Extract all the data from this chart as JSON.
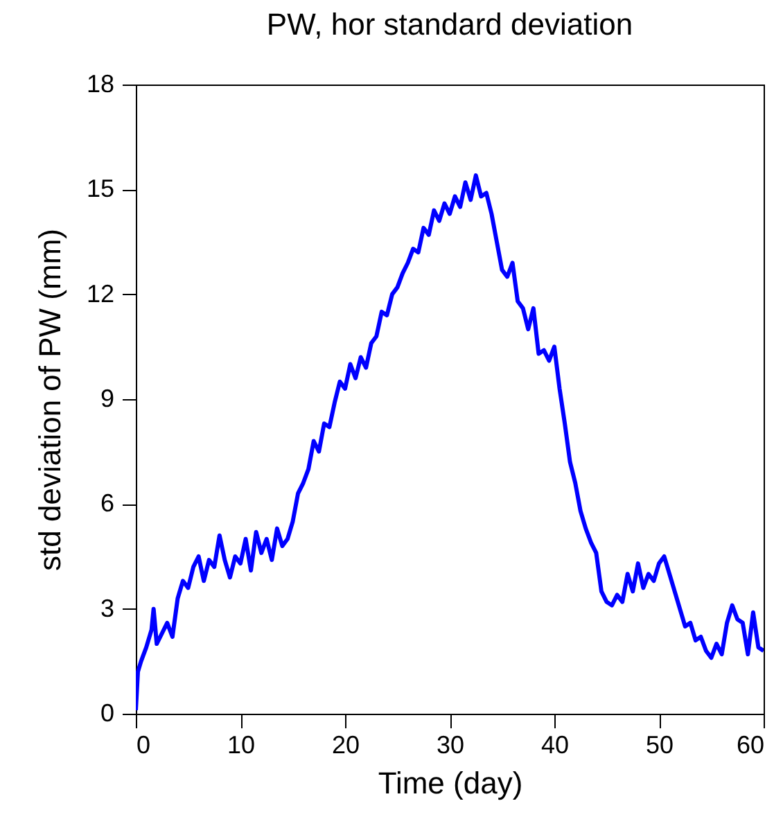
{
  "chart_data": {
    "type": "line",
    "title": "PW, hor standard deviation",
    "xlabel": "Time (day)",
    "ylabel": "std deviation of PW (mm)",
    "x": [
      0,
      0.2,
      0.5,
      1,
      1.5,
      1.7,
      2,
      2.5,
      3,
      3.5,
      4,
      4.5,
      5,
      5.5,
      6,
      6.5,
      7,
      7.5,
      8,
      8.5,
      9,
      9.5,
      10,
      10.5,
      11,
      11.5,
      12,
      12.5,
      13,
      13.5,
      14,
      14.5,
      15,
      15.5,
      16,
      16.5,
      17,
      17.5,
      18,
      18.5,
      19,
      19.5,
      20,
      20.5,
      21,
      21.5,
      22,
      22.5,
      23,
      23.5,
      24,
      24.5,
      25,
      25.5,
      26,
      26.5,
      27,
      27.5,
      28,
      28.5,
      29,
      29.5,
      30,
      30.5,
      31,
      31.5,
      32,
      32.5,
      33,
      33.5,
      34,
      34.5,
      35,
      35.5,
      36,
      36.5,
      37,
      37.5,
      38,
      38.5,
      39,
      39.5,
      40,
      40.5,
      41,
      41.5,
      42,
      42.5,
      43,
      43.5,
      44,
      44.5,
      45,
      45.5,
      46,
      46.5,
      47,
      47.5,
      48,
      48.5,
      49,
      49.5,
      50,
      50.5,
      51,
      51.5,
      52,
      52.5,
      53,
      53.5,
      54,
      54.5,
      55,
      55.5,
      56,
      56.5,
      57,
      57.5,
      58,
      58.5,
      59,
      59.5,
      60
    ],
    "series": [
      {
        "color": "#0000ff",
        "values": [
          0.1,
          1.2,
          1.5,
          1.9,
          2.4,
          3.0,
          2.0,
          2.3,
          2.6,
          2.2,
          3.3,
          3.8,
          3.6,
          4.2,
          4.5,
          3.8,
          4.4,
          4.2,
          5.1,
          4.4,
          3.9,
          4.5,
          4.3,
          5.0,
          4.1,
          5.2,
          4.6,
          5.0,
          4.4,
          5.3,
          4.8,
          5.0,
          5.5,
          6.3,
          6.6,
          7.0,
          7.8,
          7.5,
          8.3,
          8.2,
          8.9,
          9.5,
          9.3,
          10.0,
          9.6,
          10.2,
          9.9,
          10.6,
          10.8,
          11.5,
          11.4,
          12.0,
          12.2,
          12.6,
          12.9,
          13.3,
          13.2,
          13.9,
          13.7,
          14.4,
          14.1,
          14.6,
          14.3,
          14.8,
          14.5,
          15.2,
          14.7,
          15.4,
          14.8,
          14.9,
          14.3,
          13.5,
          12.7,
          12.5,
          12.9,
          11.8,
          11.6,
          11.0,
          11.6,
          10.3,
          10.4,
          10.1,
          10.5,
          9.3,
          8.3,
          7.2,
          6.6,
          5.8,
          5.3,
          4.9,
          4.6,
          3.5,
          3.2,
          3.1,
          3.4,
          3.2,
          4.0,
          3.5,
          4.3,
          3.6,
          4.0,
          3.8,
          4.3,
          4.5,
          4.0,
          3.5,
          3.0,
          2.5,
          2.6,
          2.1,
          2.2,
          1.8,
          1.6,
          2.0,
          1.7,
          2.6,
          3.1,
          2.7,
          2.6,
          1.7,
          2.9,
          1.9,
          1.8
        ]
      }
    ],
    "xlim": [
      0,
      60
    ],
    "xticks": [
      0,
      10,
      20,
      30,
      40,
      50,
      60
    ],
    "ylim": [
      0,
      18
    ],
    "yticks": [
      0,
      3,
      6,
      9,
      12,
      15,
      18
    ],
    "grid": false,
    "legend": false,
    "line_style": "solid",
    "marker": "none"
  }
}
